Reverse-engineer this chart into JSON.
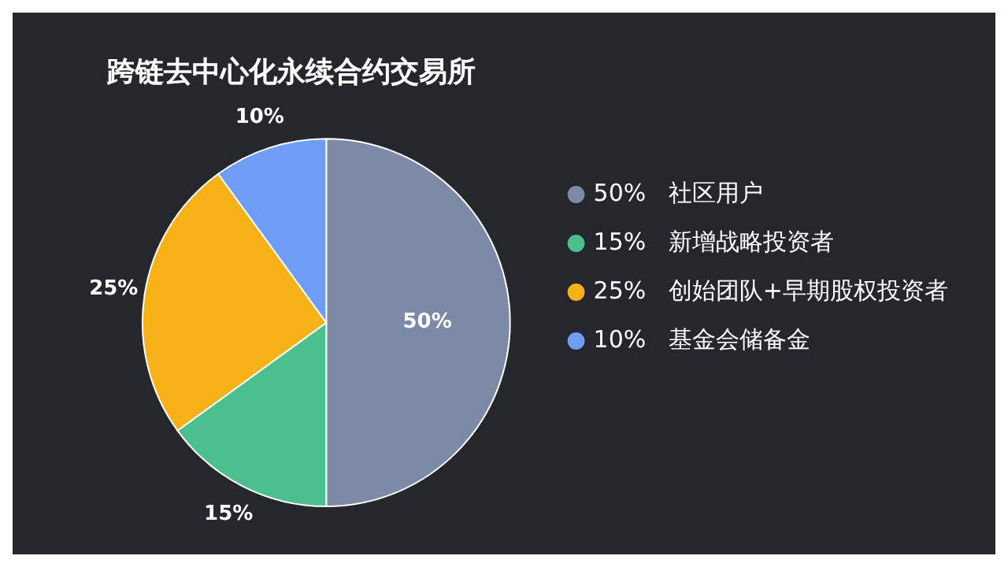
{
  "chart_data": {
    "type": "pie",
    "title": "跨链去中心化永续合约交易所",
    "categories": [
      "社区用户",
      "新增战略投资者",
      "创始团队+早期股权投资者",
      "基金会储备金"
    ],
    "values": [
      50,
      15,
      25,
      10
    ],
    "value_labels": [
      "50%",
      "15%",
      "25%",
      "10%"
    ],
    "colors": [
      "#7c8aa6",
      "#4cbf8f",
      "#f8b217",
      "#6f9cf4"
    ],
    "legend": "right"
  }
}
